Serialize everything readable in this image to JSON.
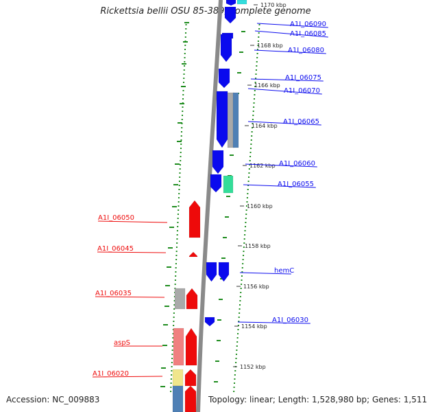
{
  "title": "Rickettsia bellii OSU 85-389, complete genome",
  "footer": {
    "accession": "Accession: NC_009883",
    "summary": "Topology: linear; Length: 1,528,980 bp; Genes: 1,511"
  },
  "colors": {
    "forward": "#0a0aee",
    "reverse": "#ee0a0a",
    "grey": "#a9a9a9",
    "green": "#33dd99",
    "cyan": "#33dddd",
    "pink": "#f08080",
    "yellow": "#f0e68c",
    "steel": "#4f80b5",
    "backbone": "#8a8a8a",
    "dots": "#1e8c1e"
  },
  "scale": {
    "unit": "kbp",
    "ticks": [
      {
        "label": "1170 kbp"
      },
      {
        "label": "1168 kbp"
      },
      {
        "label": "1166 kbp"
      },
      {
        "label": "1164 kbp"
      },
      {
        "label": "1162 kbp"
      },
      {
        "label": "1160 kbp"
      },
      {
        "label": "1158 kbp"
      },
      {
        "label": "1156 kbp"
      },
      {
        "label": "1154 kbp"
      },
      {
        "label": "1152 kbp"
      }
    ]
  },
  "genes": {
    "labeled": [
      {
        "name": "A1I_06090",
        "strand": "forward"
      },
      {
        "name": "A1I_06085",
        "strand": "forward"
      },
      {
        "name": "A1I_06080",
        "strand": "forward"
      },
      {
        "name": "A1I_06075",
        "strand": "forward"
      },
      {
        "name": "A1I_06070",
        "strand": "forward"
      },
      {
        "name": "A1I_06065",
        "strand": "forward"
      },
      {
        "name": "A1I_06060",
        "strand": "forward"
      },
      {
        "name": "A1I_06055",
        "strand": "forward"
      },
      {
        "name": "hemC",
        "strand": "forward"
      },
      {
        "name": "A1I_06030",
        "strand": "forward"
      },
      {
        "name": "A1I_06050",
        "strand": "reverse"
      },
      {
        "name": "A1I_06045",
        "strand": "reverse"
      },
      {
        "name": "A1I_06035",
        "strand": "reverse"
      },
      {
        "name": "aspS",
        "strand": "reverse"
      },
      {
        "name": "A1I_06020",
        "strand": "reverse"
      }
    ]
  }
}
